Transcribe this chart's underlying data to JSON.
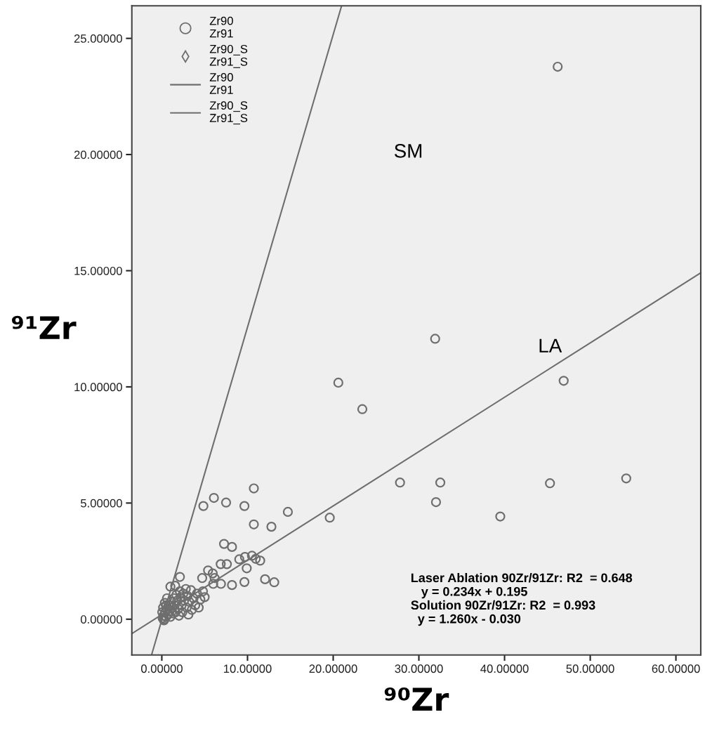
{
  "chart_data": {
    "type": "scatter",
    "xlabel": "⁹⁰Zr",
    "ylabel": "⁹¹Zr",
    "xlim": [
      -3.5,
      62.9
    ],
    "ylim": [
      -1.54,
      26.4
    ],
    "xticks": [
      {
        "value": 0,
        "label": "0.00000"
      },
      {
        "value": 10,
        "label": "10.00000"
      },
      {
        "value": 20,
        "label": "20.00000"
      },
      {
        "value": 30,
        "label": "30.00000"
      },
      {
        "value": 40,
        "label": "40.00000"
      },
      {
        "value": 50,
        "label": "50.00000"
      },
      {
        "value": 60,
        "label": "60.00000"
      }
    ],
    "yticks": [
      {
        "value": 0,
        "label": "0.00000"
      },
      {
        "value": 5,
        "label": "5.00000"
      },
      {
        "value": 10,
        "label": "10.00000"
      },
      {
        "value": 15,
        "label": "15.00000"
      },
      {
        "value": 20,
        "label": "20.00000"
      },
      {
        "value": 25,
        "label": "25.00000"
      }
    ],
    "grid": false,
    "legend": "top left",
    "series": [
      {
        "name": "Zr90\nZr91",
        "marker": "circle",
        "color": "#6e6e6e",
        "x": [
          46.2,
          31.9,
          20.6,
          23.4,
          46.9,
          27.8,
          32.5,
          32.0,
          45.3,
          54.2,
          39.5,
          19.6,
          10.74,
          6.08,
          4.85,
          7.5,
          9.64,
          14.71,
          10.74,
          12.79,
          7.26,
          8.19,
          9.04,
          9.7,
          10.52,
          10.96,
          11.48,
          9.91,
          6.87,
          7.59,
          12.05,
          13.12,
          9.64,
          8.19,
          6.9,
          5.4,
          5.94,
          6.16,
          6.0,
          4.71,
          2.11,
          1.56,
          0.1,
          0.2,
          0.3,
          0.4,
          0.5,
          0.6,
          0.7,
          0.8,
          0.9,
          1.0,
          1.1,
          1.2,
          1.3,
          1.4,
          1.5,
          1.6,
          1.7,
          1.8,
          1.9,
          2.0,
          2.1,
          2.2,
          2.3,
          2.4,
          2.5,
          2.6,
          2.8,
          2.9,
          3.0,
          3.1,
          3.2,
          3.4,
          3.5,
          3.7,
          3.9,
          4.1,
          4.3,
          4.5,
          4.8,
          5.0,
          0.15,
          0.35,
          0.6,
          0.05,
          0.25,
          1.0,
          0.5
        ],
        "values": [
          23.78,
          12.07,
          10.18,
          9.04,
          10.26,
          5.88,
          5.88,
          5.04,
          5.85,
          6.06,
          4.42,
          4.37,
          5.63,
          5.22,
          4.87,
          5.02,
          4.87,
          4.62,
          4.08,
          3.98,
          3.24,
          3.11,
          2.58,
          2.68,
          2.73,
          2.6,
          2.52,
          2.19,
          2.37,
          2.37,
          1.72,
          1.59,
          1.6,
          1.47,
          1.52,
          2.1,
          1.97,
          1.77,
          1.52,
          1.77,
          1.82,
          1.44,
          0.05,
          0.15,
          0.0,
          0.3,
          0.1,
          0.45,
          0.2,
          0.6,
          0.35,
          0.1,
          0.75,
          0.5,
          0.25,
          0.9,
          0.6,
          0.3,
          1.05,
          0.8,
          0.45,
          0.15,
          1.2,
          0.95,
          0.6,
          0.3,
          1.1,
          0.8,
          1.3,
          0.5,
          1.0,
          0.2,
          0.75,
          1.25,
          0.4,
          0.9,
          0.6,
          1.1,
          0.5,
          0.85,
          1.2,
          0.95,
          0.5,
          0.7,
          0.9,
          0.3,
          -0.05,
          1.4,
          0.6
        ]
      },
      {
        "name": "Zr90_S\nZr91_S",
        "marker": "diamond",
        "color": "#6e6e6e"
      },
      {
        "name": "Zr90\nZr91",
        "type": "line",
        "line_style": "solid",
        "color": "#6e6e6e",
        "x": [
          -3.5,
          62.9
        ],
        "values": [
          -0.62,
          14.91
        ]
      },
      {
        "name": "Zr90_S\nZr91_S",
        "type": "line",
        "line_style": "solid",
        "color": "#6e6e6e",
        "x": [
          -1.2,
          20.98
        ],
        "values": [
          -1.54,
          26.4
        ]
      }
    ],
    "annotations": [
      "SM",
      "LA",
      "Laser Ablation 90Zr/91Zr: R2  = 0.648\n   y = 0.234x + 0.195\nSolution 90Zr/91Zr: R2  = 0.993\n  y = 1.260x - 0.030"
    ]
  }
}
